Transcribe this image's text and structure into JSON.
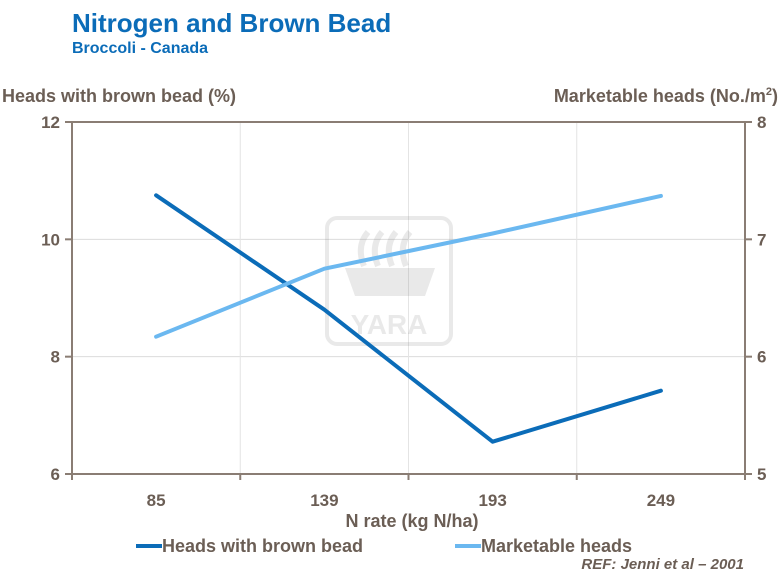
{
  "header": {
    "title": "Nitrogen and Brown Bead",
    "subtitle": "Broccoli  - Canada"
  },
  "axes": {
    "left_label": "Heads with brown bead (%)",
    "right_label_main": "Marketable heads (No./m",
    "right_label_sup": "2",
    "right_label_close": ")",
    "x_label": "N rate (kg N/ha)"
  },
  "watermark": {
    "text": "YARA"
  },
  "reference": "REF: Jenni et al – 2001",
  "colors": {
    "brown_bead": "#0b6cb8",
    "marketable": "#6bb8f0",
    "axis": "#8a7d74",
    "text": "#6b5e55",
    "title": "#0b6cb8"
  },
  "chart_data": {
    "type": "line",
    "title": "Nitrogen and Brown Bead",
    "subtitle": "Broccoli  - Canada",
    "xlabel": "N rate (kg N/ha)",
    "categories": [
      "85",
      "139",
      "193",
      "249"
    ],
    "y_left": {
      "label": "Heads with brown bead (%)",
      "range": [
        6,
        12
      ],
      "ticks": [
        "6",
        "8",
        "10",
        "12"
      ]
    },
    "y_right": {
      "label": "Marketable heads (No./m2)",
      "range": [
        5,
        8
      ],
      "ticks": [
        "5",
        "6",
        "7",
        "8"
      ]
    },
    "grid": true,
    "legend_position": "bottom",
    "series": [
      {
        "name": "Heads with brown bead",
        "axis": "left",
        "values": [
          10.75,
          8.8,
          6.55,
          7.42
        ]
      },
      {
        "name": "Marketable heads",
        "axis": "right",
        "values": [
          6.17,
          6.75,
          7.05,
          7.37
        ]
      }
    ]
  }
}
